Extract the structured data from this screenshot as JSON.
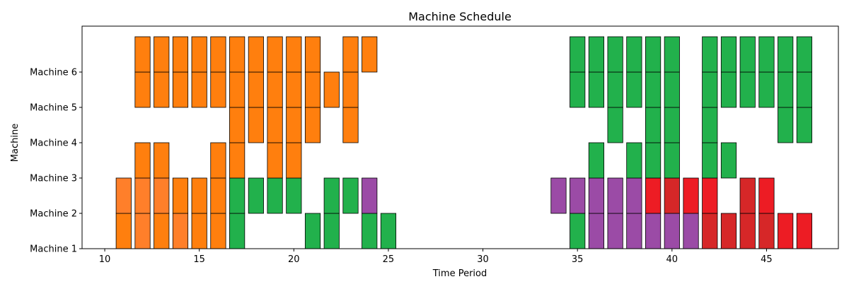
{
  "chart_data": {
    "type": "bar",
    "title": "Machine Schedule",
    "xlabel": "Time Period",
    "ylabel": "Machine",
    "xlim": [
      8.8,
      48.8
    ],
    "ylim": [
      1,
      7.3
    ],
    "x_ticks": [
      10,
      15,
      20,
      25,
      30,
      35,
      40,
      45
    ],
    "x_tick_labels": [
      "10",
      "15",
      "20",
      "25",
      "30",
      "35",
      "40",
      "45"
    ],
    "y_ticks": [
      1,
      2,
      3,
      4,
      5,
      6
    ],
    "y_tick_labels": [
      "Machine 1",
      "Machine 2",
      "Machine 3",
      "Machine 4",
      "Machine 5",
      "Machine 6"
    ],
    "bar_width": 0.8,
    "colors": {
      "orange": "#ff7f0e",
      "light_orange": "#ff7f2a",
      "green": "#22b14c",
      "purple": "#9b4ba6",
      "red": "#ed1c24",
      "dark_red": "#d62728"
    },
    "bars": [
      {
        "x": 11,
        "bottom": 1,
        "top": 2,
        "color": "orange"
      },
      {
        "x": 11,
        "bottom": 2,
        "top": 3,
        "color": "light_orange"
      },
      {
        "x": 12,
        "bottom": 1,
        "top": 2,
        "color": "light_orange"
      },
      {
        "x": 12,
        "bottom": 2,
        "top": 3,
        "color": "light_orange"
      },
      {
        "x": 12,
        "bottom": 3,
        "top": 4,
        "color": "orange"
      },
      {
        "x": 12,
        "bottom": 5,
        "top": 6,
        "color": "orange"
      },
      {
        "x": 12,
        "bottom": 6,
        "top": 7,
        "color": "orange"
      },
      {
        "x": 13,
        "bottom": 1,
        "top": 2,
        "color": "orange"
      },
      {
        "x": 13,
        "bottom": 2,
        "top": 3,
        "color": "light_orange"
      },
      {
        "x": 13,
        "bottom": 3,
        "top": 4,
        "color": "orange"
      },
      {
        "x": 13,
        "bottom": 5,
        "top": 6,
        "color": "orange"
      },
      {
        "x": 13,
        "bottom": 6,
        "top": 7,
        "color": "orange"
      },
      {
        "x": 14,
        "bottom": 1,
        "top": 2,
        "color": "light_orange"
      },
      {
        "x": 14,
        "bottom": 2,
        "top": 3,
        "color": "orange"
      },
      {
        "x": 14,
        "bottom": 5,
        "top": 6,
        "color": "orange"
      },
      {
        "x": 14,
        "bottom": 6,
        "top": 7,
        "color": "orange"
      },
      {
        "x": 15,
        "bottom": 1,
        "top": 2,
        "color": "orange"
      },
      {
        "x": 15,
        "bottom": 2,
        "top": 3,
        "color": "orange"
      },
      {
        "x": 15,
        "bottom": 5,
        "top": 6,
        "color": "orange"
      },
      {
        "x": 15,
        "bottom": 6,
        "top": 7,
        "color": "orange"
      },
      {
        "x": 16,
        "bottom": 1,
        "top": 2,
        "color": "orange"
      },
      {
        "x": 16,
        "bottom": 2,
        "top": 3,
        "color": "orange"
      },
      {
        "x": 16,
        "bottom": 3,
        "top": 4,
        "color": "orange"
      },
      {
        "x": 16,
        "bottom": 5,
        "top": 6,
        "color": "orange"
      },
      {
        "x": 16,
        "bottom": 6,
        "top": 7,
        "color": "orange"
      },
      {
        "x": 17,
        "bottom": 1,
        "top": 2,
        "color": "green"
      },
      {
        "x": 17,
        "bottom": 2,
        "top": 3,
        "color": "green"
      },
      {
        "x": 17,
        "bottom": 3,
        "top": 4,
        "color": "orange"
      },
      {
        "x": 17,
        "bottom": 4,
        "top": 5,
        "color": "orange"
      },
      {
        "x": 17,
        "bottom": 5,
        "top": 6,
        "color": "orange"
      },
      {
        "x": 17,
        "bottom": 6,
        "top": 7,
        "color": "orange"
      },
      {
        "x": 18,
        "bottom": 2,
        "top": 3,
        "color": "green"
      },
      {
        "x": 18,
        "bottom": 4,
        "top": 5,
        "color": "orange"
      },
      {
        "x": 18,
        "bottom": 5,
        "top": 6,
        "color": "orange"
      },
      {
        "x": 18,
        "bottom": 6,
        "top": 7,
        "color": "orange"
      },
      {
        "x": 19,
        "bottom": 2,
        "top": 3,
        "color": "green"
      },
      {
        "x": 19,
        "bottom": 3,
        "top": 4,
        "color": "orange"
      },
      {
        "x": 19,
        "bottom": 4,
        "top": 5,
        "color": "orange"
      },
      {
        "x": 19,
        "bottom": 5,
        "top": 6,
        "color": "orange"
      },
      {
        "x": 19,
        "bottom": 6,
        "top": 7,
        "color": "orange"
      },
      {
        "x": 20,
        "bottom": 2,
        "top": 3,
        "color": "green"
      },
      {
        "x": 20,
        "bottom": 3,
        "top": 4,
        "color": "orange"
      },
      {
        "x": 20,
        "bottom": 4,
        "top": 5,
        "color": "orange"
      },
      {
        "x": 20,
        "bottom": 5,
        "top": 6,
        "color": "orange"
      },
      {
        "x": 20,
        "bottom": 6,
        "top": 7,
        "color": "orange"
      },
      {
        "x": 21,
        "bottom": 1,
        "top": 2,
        "color": "green"
      },
      {
        "x": 21,
        "bottom": 4,
        "top": 5,
        "color": "orange"
      },
      {
        "x": 21,
        "bottom": 5,
        "top": 6,
        "color": "orange"
      },
      {
        "x": 21,
        "bottom": 6,
        "top": 7,
        "color": "orange"
      },
      {
        "x": 22,
        "bottom": 1,
        "top": 2,
        "color": "green"
      },
      {
        "x": 22,
        "bottom": 2,
        "top": 3,
        "color": "green"
      },
      {
        "x": 22,
        "bottom": 5,
        "top": 6,
        "color": "orange"
      },
      {
        "x": 23,
        "bottom": 2,
        "top": 3,
        "color": "green"
      },
      {
        "x": 23,
        "bottom": 4,
        "top": 5,
        "color": "orange"
      },
      {
        "x": 23,
        "bottom": 5,
        "top": 6,
        "color": "orange"
      },
      {
        "x": 23,
        "bottom": 6,
        "top": 7,
        "color": "orange"
      },
      {
        "x": 24,
        "bottom": 1,
        "top": 2,
        "color": "green"
      },
      {
        "x": 24,
        "bottom": 2,
        "top": 3,
        "color": "purple"
      },
      {
        "x": 24,
        "bottom": 6,
        "top": 7,
        "color": "orange"
      },
      {
        "x": 25,
        "bottom": 1,
        "top": 2,
        "color": "green"
      },
      {
        "x": 34,
        "bottom": 2,
        "top": 3,
        "color": "purple"
      },
      {
        "x": 35,
        "bottom": 1,
        "top": 2,
        "color": "green"
      },
      {
        "x": 35,
        "bottom": 2,
        "top": 3,
        "color": "purple"
      },
      {
        "x": 35,
        "bottom": 5,
        "top": 6,
        "color": "green"
      },
      {
        "x": 35,
        "bottom": 6,
        "top": 7,
        "color": "green"
      },
      {
        "x": 36,
        "bottom": 1,
        "top": 2,
        "color": "purple"
      },
      {
        "x": 36,
        "bottom": 2,
        "top": 3,
        "color": "purple"
      },
      {
        "x": 36,
        "bottom": 3,
        "top": 4,
        "color": "green"
      },
      {
        "x": 36,
        "bottom": 5,
        "top": 6,
        "color": "green"
      },
      {
        "x": 36,
        "bottom": 6,
        "top": 7,
        "color": "green"
      },
      {
        "x": 37,
        "bottom": 1,
        "top": 2,
        "color": "purple"
      },
      {
        "x": 37,
        "bottom": 2,
        "top": 3,
        "color": "purple"
      },
      {
        "x": 37,
        "bottom": 4,
        "top": 5,
        "color": "green"
      },
      {
        "x": 37,
        "bottom": 5,
        "top": 6,
        "color": "green"
      },
      {
        "x": 37,
        "bottom": 6,
        "top": 7,
        "color": "green"
      },
      {
        "x": 38,
        "bottom": 1,
        "top": 2,
        "color": "purple"
      },
      {
        "x": 38,
        "bottom": 2,
        "top": 3,
        "color": "purple"
      },
      {
        "x": 38,
        "bottom": 3,
        "top": 4,
        "color": "green"
      },
      {
        "x": 38,
        "bottom": 5,
        "top": 6,
        "color": "green"
      },
      {
        "x": 38,
        "bottom": 6,
        "top": 7,
        "color": "green"
      },
      {
        "x": 39,
        "bottom": 1,
        "top": 2,
        "color": "purple"
      },
      {
        "x": 39,
        "bottom": 2,
        "top": 3,
        "color": "red"
      },
      {
        "x": 39,
        "bottom": 3,
        "top": 4,
        "color": "green"
      },
      {
        "x": 39,
        "bottom": 4,
        "top": 5,
        "color": "green"
      },
      {
        "x": 39,
        "bottom": 5,
        "top": 6,
        "color": "green"
      },
      {
        "x": 39,
        "bottom": 6,
        "top": 7,
        "color": "green"
      },
      {
        "x": 40,
        "bottom": 1,
        "top": 2,
        "color": "purple"
      },
      {
        "x": 40,
        "bottom": 2,
        "top": 3,
        "color": "dark_red"
      },
      {
        "x": 40,
        "bottom": 3,
        "top": 4,
        "color": "green"
      },
      {
        "x": 40,
        "bottom": 4,
        "top": 5,
        "color": "green"
      },
      {
        "x": 40,
        "bottom": 5,
        "top": 6,
        "color": "green"
      },
      {
        "x": 40,
        "bottom": 6,
        "top": 7,
        "color": "green"
      },
      {
        "x": 41,
        "bottom": 1,
        "top": 2,
        "color": "purple"
      },
      {
        "x": 41,
        "bottom": 2,
        "top": 3,
        "color": "red"
      },
      {
        "x": 42,
        "bottom": 1,
        "top": 2,
        "color": "dark_red"
      },
      {
        "x": 42,
        "bottom": 2,
        "top": 3,
        "color": "red"
      },
      {
        "x": 42,
        "bottom": 3,
        "top": 4,
        "color": "green"
      },
      {
        "x": 42,
        "bottom": 4,
        "top": 5,
        "color": "green"
      },
      {
        "x": 42,
        "bottom": 5,
        "top": 6,
        "color": "green"
      },
      {
        "x": 42,
        "bottom": 6,
        "top": 7,
        "color": "green"
      },
      {
        "x": 43,
        "bottom": 1,
        "top": 2,
        "color": "dark_red"
      },
      {
        "x": 43,
        "bottom": 3,
        "top": 4,
        "color": "green"
      },
      {
        "x": 43,
        "bottom": 5,
        "top": 6,
        "color": "green"
      },
      {
        "x": 43,
        "bottom": 6,
        "top": 7,
        "color": "green"
      },
      {
        "x": 44,
        "bottom": 1,
        "top": 2,
        "color": "dark_red"
      },
      {
        "x": 44,
        "bottom": 2,
        "top": 3,
        "color": "dark_red"
      },
      {
        "x": 44,
        "bottom": 5,
        "top": 6,
        "color": "green"
      },
      {
        "x": 44,
        "bottom": 6,
        "top": 7,
        "color": "green"
      },
      {
        "x": 45,
        "bottom": 1,
        "top": 2,
        "color": "dark_red"
      },
      {
        "x": 45,
        "bottom": 2,
        "top": 3,
        "color": "red"
      },
      {
        "x": 45,
        "bottom": 5,
        "top": 6,
        "color": "green"
      },
      {
        "x": 45,
        "bottom": 6,
        "top": 7,
        "color": "green"
      },
      {
        "x": 46,
        "bottom": 1,
        "top": 2,
        "color": "red"
      },
      {
        "x": 46,
        "bottom": 4,
        "top": 5,
        "color": "green"
      },
      {
        "x": 46,
        "bottom": 5,
        "top": 6,
        "color": "green"
      },
      {
        "x": 46,
        "bottom": 6,
        "top": 7,
        "color": "green"
      },
      {
        "x": 47,
        "bottom": 1,
        "top": 2,
        "color": "red"
      },
      {
        "x": 47,
        "bottom": 4,
        "top": 5,
        "color": "green"
      },
      {
        "x": 47,
        "bottom": 5,
        "top": 6,
        "color": "green"
      },
      {
        "x": 47,
        "bottom": 6,
        "top": 7,
        "color": "green"
      }
    ]
  }
}
